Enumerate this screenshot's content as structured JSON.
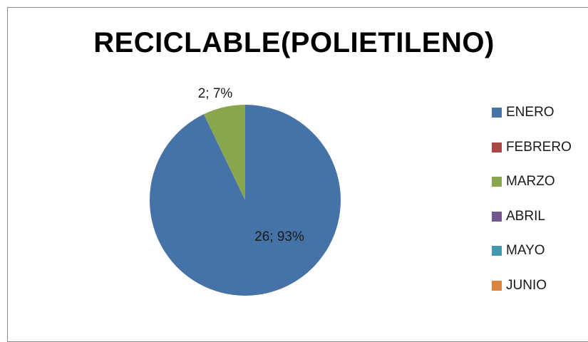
{
  "chart_data": {
    "type": "pie",
    "title": "RECICLABLE(POLIETILENO)",
    "categories": [
      "ENERO",
      "FEBRERO",
      "MARZO",
      "ABRIL",
      "MAYO",
      "JUNIO"
    ],
    "values": [
      26,
      0,
      2,
      0,
      0,
      0
    ],
    "data_labels": [
      "26; 93%",
      "",
      "2; 7%",
      "",
      "",
      ""
    ],
    "colors": [
      "#4572a7",
      "#aa4643",
      "#89a54e",
      "#71588f",
      "#4198af",
      "#db843d"
    ],
    "legend_position": "right"
  }
}
